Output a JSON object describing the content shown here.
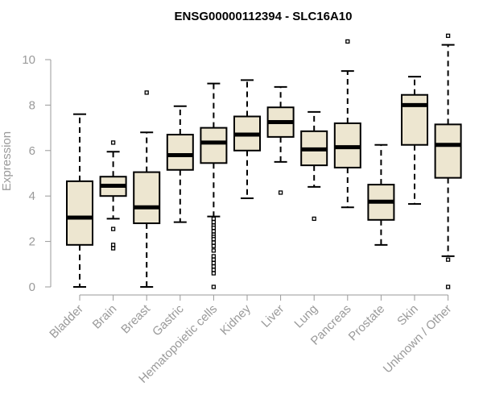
{
  "chart_data": {
    "type": "boxplot",
    "title": "ENSG00000112394 - SLC16A10",
    "xlabel": "",
    "ylabel": "Expression",
    "ylim": [
      0,
      11.2
    ],
    "yticks": [
      0,
      2,
      4,
      6,
      8,
      10
    ],
    "grid": false,
    "legend": "none",
    "colors": {
      "box_fill": "#ede6d0",
      "box_stroke": "#000000",
      "median": "#000000",
      "axis": "#9a9a9a",
      "text": "#9a9a9a"
    },
    "categories": [
      "Bladder",
      "Brain",
      "Breast",
      "Gastric",
      "Hematopoietic cells",
      "Kidney",
      "Liver",
      "Lung",
      "Pancreas",
      "Prostate",
      "Skin",
      "Unknown / Other"
    ],
    "boxes": [
      {
        "category": "Bladder",
        "whisker_low": 0.0,
        "q1": 1.85,
        "median": 3.05,
        "q3": 4.65,
        "whisker_high": 7.6,
        "outliers": []
      },
      {
        "category": "Brain",
        "whisker_low": 3.0,
        "q1": 4.0,
        "median": 4.45,
        "q3": 4.85,
        "whisker_high": 5.95,
        "outliers": [
          6.35,
          2.55,
          1.85,
          1.7
        ]
      },
      {
        "category": "Breast",
        "whisker_low": 0.0,
        "q1": 2.8,
        "median": 3.5,
        "q3": 5.05,
        "whisker_high": 6.8,
        "outliers": [
          8.55
        ]
      },
      {
        "category": "Gastric",
        "whisker_low": 2.85,
        "q1": 5.15,
        "median": 5.8,
        "q3": 6.7,
        "whisker_high": 7.95,
        "outliers": []
      },
      {
        "category": "Hematopoietic cells",
        "whisker_low": 3.1,
        "q1": 5.45,
        "median": 6.35,
        "q3": 7.0,
        "whisker_high": 8.95,
        "outliers": [
          3.0,
          2.85,
          2.7,
          2.6,
          2.45,
          2.3,
          2.2,
          2.1,
          1.95,
          1.8,
          1.6,
          1.35,
          1.2,
          1.05,
          0.9,
          0.75,
          0.6,
          0.0
        ]
      },
      {
        "category": "Kidney",
        "whisker_low": 3.9,
        "q1": 6.0,
        "median": 6.7,
        "q3": 7.5,
        "whisker_high": 9.1,
        "outliers": []
      },
      {
        "category": "Liver",
        "whisker_low": 5.5,
        "q1": 6.6,
        "median": 7.25,
        "q3": 7.9,
        "whisker_high": 8.8,
        "outliers": [
          4.15
        ]
      },
      {
        "category": "Lung",
        "whisker_low": 4.4,
        "q1": 5.35,
        "median": 6.05,
        "q3": 6.85,
        "whisker_high": 7.7,
        "outliers": [
          3.0
        ]
      },
      {
        "category": "Pancreas",
        "whisker_low": 3.5,
        "q1": 5.25,
        "median": 6.15,
        "q3": 7.2,
        "whisker_high": 9.5,
        "outliers": [
          10.8
        ]
      },
      {
        "category": "Prostate",
        "whisker_low": 1.85,
        "q1": 2.95,
        "median": 3.75,
        "q3": 4.5,
        "whisker_high": 6.25,
        "outliers": []
      },
      {
        "category": "Skin",
        "whisker_low": 3.65,
        "q1": 6.25,
        "median": 8.0,
        "q3": 8.45,
        "whisker_high": 9.25,
        "outliers": []
      },
      {
        "category": "Unknown / Other",
        "whisker_low": 1.35,
        "q1": 4.8,
        "median": 6.25,
        "q3": 7.15,
        "whisker_high": 10.65,
        "outliers": [
          11.05,
          1.2,
          0.0
        ]
      }
    ]
  }
}
